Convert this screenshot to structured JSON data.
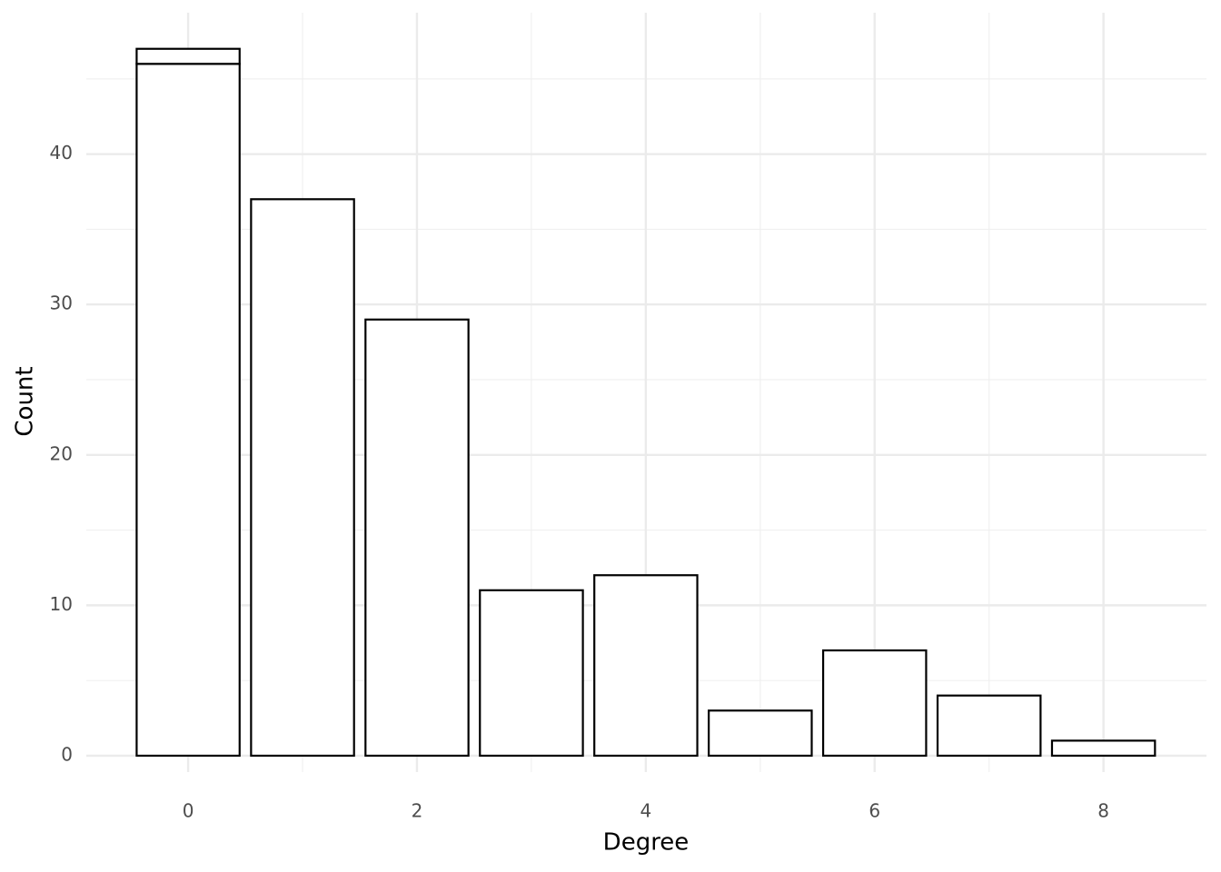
{
  "chart_data": {
    "type": "bar",
    "stacked": true,
    "x_label": "Degree",
    "y_label": "Count",
    "x": [
      0,
      1,
      2,
      3,
      4,
      5,
      6,
      7,
      8
    ],
    "series": [
      {
        "color": "#ffffff",
        "values": [
          46,
          37,
          29,
          11,
          12,
          3,
          7,
          4,
          1
        ]
      },
      {
        "color": "#ffffff",
        "values": [
          1,
          null,
          null,
          null,
          null,
          null,
          null,
          null,
          null
        ]
      }
    ],
    "bar_width": 0.9,
    "edge_color": "#000000",
    "xlim": [
      -0.89,
      8.9
    ],
    "xticks": [
      0,
      2,
      4,
      6,
      8
    ],
    "xminor_ticks": [
      1,
      3,
      5,
      7
    ],
    "ylim": [
      -1.09,
      49.4
    ],
    "yticks": [
      0,
      10,
      20,
      30,
      40
    ],
    "yminor_ticks": [
      5,
      15,
      25,
      35,
      45
    ],
    "grid": true
  }
}
